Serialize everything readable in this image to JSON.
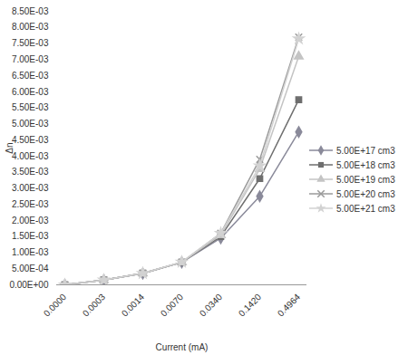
{
  "chart_data": {
    "type": "line",
    "x_label": "Current (mA)",
    "y_label": "Δn",
    "categories": [
      "0.0000",
      "0.0003",
      "0.0014",
      "0.0070",
      "0.0340",
      "0.1420",
      "0.4964"
    ],
    "ylim": [
      0,
      0.0085
    ],
    "yticks": [
      {
        "value": 0,
        "label": "0.00E+00"
      },
      {
        "value": 0.0005,
        "label": "5.00E-04"
      },
      {
        "value": 0.001,
        "label": "1.00E-03"
      },
      {
        "value": 0.0015,
        "label": "1.50E-03"
      },
      {
        "value": 0.002,
        "label": "2.00E-03"
      },
      {
        "value": 0.0025,
        "label": "2.50E-03"
      },
      {
        "value": 0.003,
        "label": "3.00E-03"
      },
      {
        "value": 0.0035,
        "label": "3.50E-03"
      },
      {
        "value": 0.004,
        "label": "4.00E-03"
      },
      {
        "value": 0.0045,
        "label": "4.50E-03"
      },
      {
        "value": 0.005,
        "label": "5.00E-03"
      },
      {
        "value": 0.0055,
        "label": "5.50E-03"
      },
      {
        "value": 0.006,
        "label": "6.00E-03"
      },
      {
        "value": 0.0065,
        "label": "6.50E-03"
      },
      {
        "value": 0.007,
        "label": "7.00E-03"
      },
      {
        "value": 0.0075,
        "label": "7.50E-03"
      },
      {
        "value": 0.008,
        "label": "8.00E-03"
      },
      {
        "value": 0.0085,
        "label": "8.50E-03"
      }
    ],
    "legend": "right",
    "series": [
      {
        "name": "5.00E+17 cm3",
        "color": "#8a8a9a",
        "marker": "diamond",
        "values": [
          0,
          0.00015,
          0.00035,
          0.0007,
          0.00145,
          0.00275,
          0.00475
        ]
      },
      {
        "name": "5.00E+18 cm3",
        "color": "#6e6e6e",
        "marker": "square",
        "values": [
          0,
          0.00015,
          0.00036,
          0.0007,
          0.0015,
          0.0033,
          0.00575
        ]
      },
      {
        "name": "5.00E+19 cm3",
        "color": "#c4c4c4",
        "marker": "triangle",
        "values": [
          0,
          0.00015,
          0.00036,
          0.0007,
          0.00155,
          0.0036,
          0.0071
        ]
      },
      {
        "name": "5.00E+20 cm3",
        "color": "#9a9a9a",
        "marker": "x",
        "values": [
          0,
          0.00015,
          0.00036,
          0.0007,
          0.0016,
          0.0039,
          0.0077
        ]
      },
      {
        "name": "5.00E+21 cm3",
        "color": "#d2d2d2",
        "marker": "star",
        "values": [
          0,
          0.00015,
          0.00036,
          0.00071,
          0.0016,
          0.0037,
          0.00765
        ]
      }
    ]
  }
}
